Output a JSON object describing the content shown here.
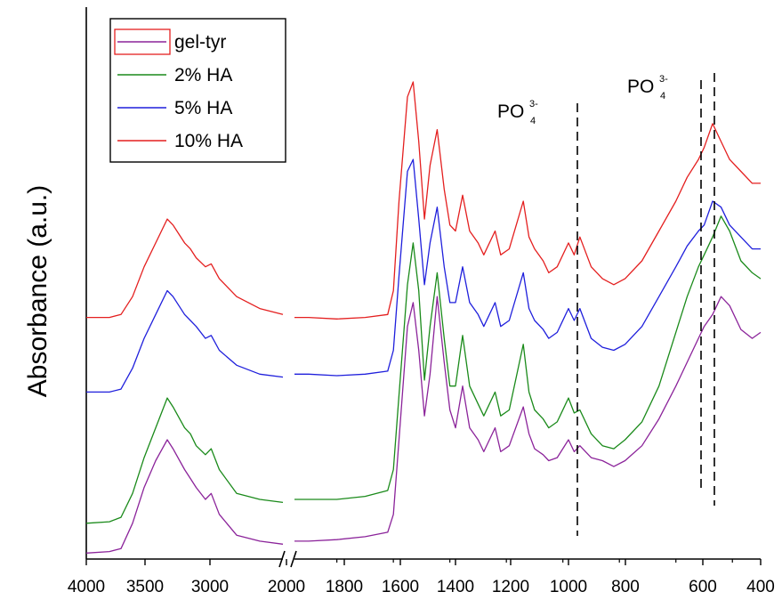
{
  "chart_data": {
    "type": "line",
    "title": "",
    "xlabel": "",
    "ylabel": "Absorbance (a.u.)",
    "x_reversed": true,
    "x_segments": [
      {
        "range": [
          4000,
          2000
        ],
        "ticks": [
          4000,
          3500,
          3000,
          2000
        ]
      },
      {
        "range": [
          2000,
          400
        ],
        "ticks": [
          2000,
          1800,
          1600,
          1400,
          1200,
          1000,
          800,
          600,
          400
        ]
      }
    ],
    "axis_break": "≈ 2300/2050",
    "y_ticks_shown": false,
    "grid": false,
    "legend_position": "top-left",
    "legend_entries": [
      {
        "name": "gel-tyr",
        "color": "#8b239a",
        "highlighted_box": true
      },
      {
        "name": "2% HA",
        "color": "#1a8a1a"
      },
      {
        "name": "5% HA",
        "color": "#1f1fdc"
      },
      {
        "name": "10% HA",
        "color": "#e41f1f"
      }
    ],
    "annotations": [
      {
        "label_main": "PO",
        "label_sub": "4",
        "label_sup": "3-",
        "x": 1030,
        "dashed_lines": [
          1030
        ]
      },
      {
        "label_main": "PO",
        "label_sub": "4",
        "label_sup": "3-",
        "x": 590,
        "dashed_lines": [
          605,
          565
        ]
      }
    ],
    "series": [
      {
        "name": "gel-tyr",
        "color": "#8b239a",
        "points": [
          [
            4000,
            0.02
          ],
          [
            3800,
            0.025
          ],
          [
            3700,
            0.035
          ],
          [
            3600,
            0.12
          ],
          [
            3500,
            0.24
          ],
          [
            3400,
            0.33
          ],
          [
            3300,
            0.4
          ],
          [
            3250,
            0.37
          ],
          [
            3150,
            0.3
          ],
          [
            3100,
            0.27
          ],
          [
            3050,
            0.24
          ],
          [
            2970,
            0.2
          ],
          [
            2920,
            0.22
          ],
          [
            2850,
            0.15
          ],
          [
            2700,
            0.08
          ],
          [
            2500,
            0.06
          ],
          [
            2300,
            0.05
          ],
          [
            2050,
            0.06
          ],
          [
            2000,
            0.06
          ],
          [
            1900,
            0.065
          ],
          [
            1800,
            0.075
          ],
          [
            1720,
            0.09
          ],
          [
            1700,
            0.15
          ],
          [
            1680,
            0.4
          ],
          [
            1650,
            0.78
          ],
          [
            1630,
            0.86
          ],
          [
            1610,
            0.7
          ],
          [
            1590,
            0.48
          ],
          [
            1570,
            0.62
          ],
          [
            1545,
            0.88
          ],
          [
            1520,
            0.66
          ],
          [
            1500,
            0.5
          ],
          [
            1480,
            0.44
          ],
          [
            1455,
            0.58
          ],
          [
            1430,
            0.44
          ],
          [
            1400,
            0.4
          ],
          [
            1380,
            0.36
          ],
          [
            1340,
            0.44
          ],
          [
            1320,
            0.36
          ],
          [
            1290,
            0.38
          ],
          [
            1240,
            0.51
          ],
          [
            1220,
            0.42
          ],
          [
            1200,
            0.37
          ],
          [
            1170,
            0.35
          ],
          [
            1150,
            0.33
          ],
          [
            1120,
            0.34
          ],
          [
            1080,
            0.4
          ],
          [
            1060,
            0.36
          ],
          [
            1040,
            0.38
          ],
          [
            1000,
            0.34
          ],
          [
            960,
            0.33
          ],
          [
            920,
            0.31
          ],
          [
            880,
            0.33
          ],
          [
            820,
            0.38
          ],
          [
            760,
            0.47
          ],
          [
            700,
            0.58
          ],
          [
            660,
            0.66
          ],
          [
            620,
            0.74
          ],
          [
            600,
            0.78
          ],
          [
            570,
            0.82
          ],
          [
            540,
            0.88
          ],
          [
            510,
            0.85
          ],
          [
            470,
            0.77
          ],
          [
            430,
            0.74
          ],
          [
            400,
            0.76
          ]
        ]
      },
      {
        "name": "2% HA",
        "color": "#1a8a1a",
        "points": [
          [
            4000,
            0.12
          ],
          [
            3800,
            0.125
          ],
          [
            3700,
            0.14
          ],
          [
            3600,
            0.22
          ],
          [
            3500,
            0.34
          ],
          [
            3400,
            0.44
          ],
          [
            3300,
            0.54
          ],
          [
            3250,
            0.51
          ],
          [
            3150,
            0.44
          ],
          [
            3100,
            0.42
          ],
          [
            3050,
            0.38
          ],
          [
            2970,
            0.35
          ],
          [
            2920,
            0.37
          ],
          [
            2850,
            0.3
          ],
          [
            2700,
            0.22
          ],
          [
            2500,
            0.2
          ],
          [
            2300,
            0.19
          ],
          [
            2050,
            0.2
          ],
          [
            2000,
            0.2
          ],
          [
            1900,
            0.2
          ],
          [
            1800,
            0.21
          ],
          [
            1720,
            0.23
          ],
          [
            1700,
            0.3
          ],
          [
            1680,
            0.55
          ],
          [
            1650,
            0.92
          ],
          [
            1630,
            1.06
          ],
          [
            1610,
            0.9
          ],
          [
            1590,
            0.6
          ],
          [
            1570,
            0.78
          ],
          [
            1545,
            0.96
          ],
          [
            1520,
            0.74
          ],
          [
            1500,
            0.58
          ],
          [
            1480,
            0.58
          ],
          [
            1455,
            0.75
          ],
          [
            1430,
            0.58
          ],
          [
            1400,
            0.52
          ],
          [
            1380,
            0.48
          ],
          [
            1340,
            0.56
          ],
          [
            1320,
            0.48
          ],
          [
            1290,
            0.5
          ],
          [
            1240,
            0.72
          ],
          [
            1220,
            0.56
          ],
          [
            1200,
            0.5
          ],
          [
            1170,
            0.47
          ],
          [
            1150,
            0.44
          ],
          [
            1120,
            0.46
          ],
          [
            1080,
            0.54
          ],
          [
            1060,
            0.49
          ],
          [
            1040,
            0.5
          ],
          [
            1000,
            0.42
          ],
          [
            960,
            0.38
          ],
          [
            920,
            0.37
          ],
          [
            880,
            0.4
          ],
          [
            820,
            0.46
          ],
          [
            760,
            0.58
          ],
          [
            700,
            0.76
          ],
          [
            660,
            0.88
          ],
          [
            620,
            0.98
          ],
          [
            600,
            1.02
          ],
          [
            570,
            1.08
          ],
          [
            540,
            1.15
          ],
          [
            510,
            1.1
          ],
          [
            470,
            1.0
          ],
          [
            430,
            0.96
          ],
          [
            400,
            0.94
          ]
        ]
      },
      {
        "name": "5% HA",
        "color": "#1f1fdc",
        "points": [
          [
            4000,
            0.56
          ],
          [
            3800,
            0.56
          ],
          [
            3700,
            0.57
          ],
          [
            3600,
            0.64
          ],
          [
            3500,
            0.74
          ],
          [
            3400,
            0.82
          ],
          [
            3300,
            0.9
          ],
          [
            3250,
            0.88
          ],
          [
            3150,
            0.82
          ],
          [
            3100,
            0.8
          ],
          [
            3050,
            0.78
          ],
          [
            2970,
            0.74
          ],
          [
            2920,
            0.75
          ],
          [
            2850,
            0.7
          ],
          [
            2700,
            0.65
          ],
          [
            2500,
            0.62
          ],
          [
            2300,
            0.61
          ],
          [
            2050,
            0.62
          ],
          [
            2000,
            0.62
          ],
          [
            1900,
            0.615
          ],
          [
            1800,
            0.62
          ],
          [
            1720,
            0.63
          ],
          [
            1700,
            0.7
          ],
          [
            1680,
            0.95
          ],
          [
            1650,
            1.3
          ],
          [
            1630,
            1.34
          ],
          [
            1610,
            1.14
          ],
          [
            1590,
            0.92
          ],
          [
            1570,
            1.06
          ],
          [
            1545,
            1.18
          ],
          [
            1520,
            0.98
          ],
          [
            1500,
            0.86
          ],
          [
            1480,
            0.86
          ],
          [
            1455,
            0.98
          ],
          [
            1430,
            0.86
          ],
          [
            1400,
            0.82
          ],
          [
            1380,
            0.78
          ],
          [
            1340,
            0.86
          ],
          [
            1320,
            0.78
          ],
          [
            1290,
            0.8
          ],
          [
            1240,
            0.96
          ],
          [
            1220,
            0.84
          ],
          [
            1200,
            0.8
          ],
          [
            1170,
            0.77
          ],
          [
            1150,
            0.74
          ],
          [
            1120,
            0.76
          ],
          [
            1080,
            0.84
          ],
          [
            1060,
            0.8
          ],
          [
            1040,
            0.84
          ],
          [
            1000,
            0.74
          ],
          [
            960,
            0.71
          ],
          [
            920,
            0.7
          ],
          [
            880,
            0.72
          ],
          [
            820,
            0.78
          ],
          [
            760,
            0.88
          ],
          [
            700,
            0.98
          ],
          [
            660,
            1.05
          ],
          [
            620,
            1.1
          ],
          [
            600,
            1.12
          ],
          [
            570,
            1.2
          ],
          [
            540,
            1.18
          ],
          [
            510,
            1.12
          ],
          [
            470,
            1.08
          ],
          [
            430,
            1.04
          ],
          [
            400,
            1.04
          ]
        ]
      },
      {
        "name": "10% HA",
        "color": "#e41f1f",
        "points": [
          [
            4000,
            0.81
          ],
          [
            3800,
            0.81
          ],
          [
            3700,
            0.82
          ],
          [
            3600,
            0.88
          ],
          [
            3500,
            0.98
          ],
          [
            3400,
            1.06
          ],
          [
            3300,
            1.14
          ],
          [
            3250,
            1.12
          ],
          [
            3150,
            1.06
          ],
          [
            3100,
            1.04
          ],
          [
            3050,
            1.01
          ],
          [
            2970,
            0.98
          ],
          [
            2920,
            0.99
          ],
          [
            2850,
            0.94
          ],
          [
            2700,
            0.88
          ],
          [
            2500,
            0.84
          ],
          [
            2300,
            0.82
          ],
          [
            2050,
            0.81
          ],
          [
            2000,
            0.81
          ],
          [
            1900,
            0.805
          ],
          [
            1800,
            0.81
          ],
          [
            1720,
            0.82
          ],
          [
            1700,
            0.9
          ],
          [
            1680,
            1.2
          ],
          [
            1650,
            1.55
          ],
          [
            1630,
            1.6
          ],
          [
            1610,
            1.4
          ],
          [
            1590,
            1.14
          ],
          [
            1570,
            1.32
          ],
          [
            1545,
            1.44
          ],
          [
            1520,
            1.24
          ],
          [
            1500,
            1.12
          ],
          [
            1480,
            1.1
          ],
          [
            1455,
            1.22
          ],
          [
            1430,
            1.1
          ],
          [
            1400,
            1.06
          ],
          [
            1380,
            1.02
          ],
          [
            1340,
            1.1
          ],
          [
            1320,
            1.02
          ],
          [
            1290,
            1.04
          ],
          [
            1240,
            1.2
          ],
          [
            1220,
            1.08
          ],
          [
            1200,
            1.04
          ],
          [
            1170,
            1.0
          ],
          [
            1150,
            0.96
          ],
          [
            1120,
            0.98
          ],
          [
            1080,
            1.06
          ],
          [
            1060,
            1.02
          ],
          [
            1040,
            1.08
          ],
          [
            1000,
            0.98
          ],
          [
            960,
            0.94
          ],
          [
            920,
            0.92
          ],
          [
            880,
            0.94
          ],
          [
            820,
            1.0
          ],
          [
            760,
            1.1
          ],
          [
            700,
            1.2
          ],
          [
            660,
            1.28
          ],
          [
            620,
            1.34
          ],
          [
            600,
            1.38
          ],
          [
            570,
            1.46
          ],
          [
            540,
            1.4
          ],
          [
            510,
            1.34
          ],
          [
            470,
            1.3
          ],
          [
            430,
            1.26
          ],
          [
            400,
            1.26
          ]
        ]
      }
    ]
  }
}
